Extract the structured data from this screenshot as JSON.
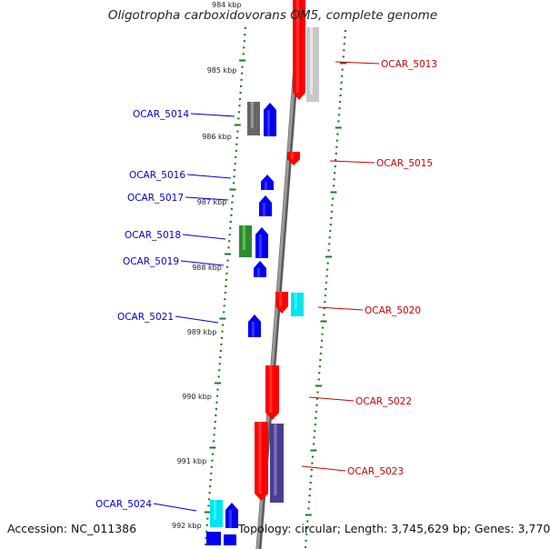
{
  "title": "Oligotropha carboxidovorans OM5, complete genome",
  "footer": {
    "accession": "Accession: NC_011386",
    "summary": "Topology: circular; Length: 3,745,629 bp; Genes: 3,770"
  },
  "colors": {
    "forward_label": "#cc0000",
    "reverse_label": "#0000cc",
    "backbone": "#808080",
    "tick": "#1a7a1a"
  },
  "kbp_labels": [
    {
      "text": "984 kbp"
    },
    {
      "text": "985 kbp"
    },
    {
      "text": "986 kbp"
    },
    {
      "text": "987 kbp"
    },
    {
      "text": "988 kbp"
    },
    {
      "text": "989 kbp"
    },
    {
      "text": "990 kbp"
    },
    {
      "text": "991 kbp"
    },
    {
      "text": "992 kbp"
    }
  ],
  "genes": [
    {
      "label": "OCAR_5013",
      "strand": "forward",
      "color": "#ff0000"
    },
    {
      "label": "OCAR_5013",
      "strand": "forward",
      "color": "#c8c8c8"
    },
    {
      "label": "OCAR_5014",
      "strand": "reverse",
      "color": "#666666"
    },
    {
      "label": "OCAR_5014",
      "strand": "reverse",
      "color": "#0000ee"
    },
    {
      "label": "OCAR_5015",
      "strand": "forward",
      "color": "#ff0000"
    },
    {
      "label": "OCAR_5016",
      "strand": "reverse",
      "color": "#0000ee"
    },
    {
      "label": "OCAR_5017",
      "strand": "reverse",
      "color": "#0000ee"
    },
    {
      "label": "OCAR_5018",
      "strand": "reverse",
      "color": "#2e8b2e"
    },
    {
      "label": "OCAR_5018",
      "strand": "reverse",
      "color": "#0000ee"
    },
    {
      "label": "OCAR_5019",
      "strand": "reverse",
      "color": "#0000ee"
    },
    {
      "label": "OCAR_5020",
      "strand": "forward",
      "color": "#ff0000"
    },
    {
      "label": "OCAR_5020",
      "strand": "forward",
      "color": "#00e5ee"
    },
    {
      "label": "OCAR_5021",
      "strand": "reverse",
      "color": "#0000ee"
    },
    {
      "label": "OCAR_5022",
      "strand": "forward",
      "color": "#ff0000"
    },
    {
      "label": "OCAR_5023",
      "strand": "forward",
      "color": "#ff0000"
    },
    {
      "label": "OCAR_5023",
      "strand": "forward",
      "color": "#4a3d8f"
    },
    {
      "label": "OCAR_5024",
      "strand": "reverse",
      "color": "#00e5ee"
    },
    {
      "label": "OCAR_5024",
      "strand": "reverse",
      "color": "#0000ee"
    }
  ],
  "gene_labels": [
    {
      "text": "OCAR_5013",
      "strand": "forward"
    },
    {
      "text": "OCAR_5014",
      "strand": "reverse"
    },
    {
      "text": "OCAR_5015",
      "strand": "forward"
    },
    {
      "text": "OCAR_5016",
      "strand": "reverse"
    },
    {
      "text": "OCAR_5017",
      "strand": "reverse"
    },
    {
      "text": "OCAR_5018",
      "strand": "reverse"
    },
    {
      "text": "OCAR_5019",
      "strand": "reverse"
    },
    {
      "text": "OCAR_5020",
      "strand": "forward"
    },
    {
      "text": "OCAR_5021",
      "strand": "reverse"
    },
    {
      "text": "OCAR_5022",
      "strand": "forward"
    },
    {
      "text": "OCAR_5023",
      "strand": "forward"
    },
    {
      "text": "OCAR_5024",
      "strand": "reverse"
    }
  ]
}
